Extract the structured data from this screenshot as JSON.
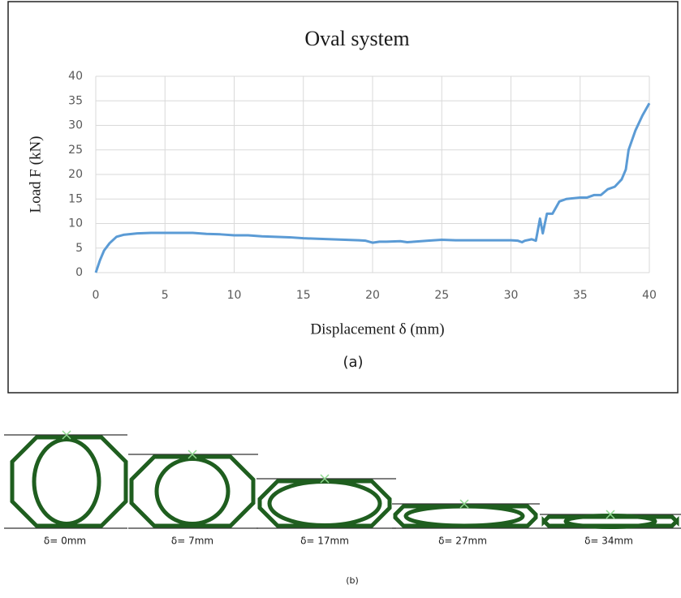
{
  "chart_data": {
    "type": "line",
    "title": "Oval system",
    "xlabel": "Displacement δ (mm)",
    "ylabel": "Load F (kN)",
    "caption": "(a)",
    "color": "#5b9bd5",
    "x": [
      0,
      0.3,
      0.6,
      1,
      1.5,
      2,
      3,
      4,
      5,
      6,
      7,
      8,
      9,
      10,
      11,
      12,
      13,
      14,
      15,
      16,
      17,
      18,
      19,
      19.5,
      20,
      20.5,
      21,
      22,
      22.5,
      23,
      24,
      25,
      26,
      27,
      28,
      29,
      30,
      30.5,
      30.8,
      31,
      31.5,
      31.8,
      32.1,
      32.3,
      32.6,
      33,
      33.5,
      34,
      35,
      35.5,
      36,
      36.5,
      37,
      37.5,
      38,
      38.3,
      38.5,
      39,
      39.5,
      40
    ],
    "values": [
      0,
      2.5,
      4.5,
      6,
      7.3,
      7.7,
      8,
      8.1,
      8.1,
      8.1,
      8.1,
      7.9,
      7.8,
      7.6,
      7.6,
      7.4,
      7.3,
      7.2,
      7,
      6.9,
      6.8,
      6.7,
      6.6,
      6.5,
      6.1,
      6.3,
      6.3,
      6.4,
      6.2,
      6.3,
      6.5,
      6.7,
      6.6,
      6.6,
      6.6,
      6.6,
      6.6,
      6.5,
      6.2,
      6.5,
      6.8,
      6.5,
      11,
      8,
      12,
      12,
      14.5,
      15,
      15.3,
      15.3,
      15.8,
      15.8,
      17,
      17.5,
      19,
      21,
      25,
      29,
      32,
      34.5
    ],
    "xlim": [
      0,
      40
    ],
    "xticks": [
      0,
      5,
      10,
      15,
      20,
      25,
      30,
      35,
      40
    ],
    "ylim": [
      0,
      40
    ],
    "yticks": [
      0,
      5,
      10,
      15,
      20,
      25,
      30,
      35,
      40
    ],
    "grid": true
  },
  "figure_b": {
    "panels": [
      "δ= 0mm",
      "δ= 7mm",
      "δ= 17mm",
      "δ= 27mm",
      "δ= 34mm"
    ],
    "caption": "(b)"
  }
}
